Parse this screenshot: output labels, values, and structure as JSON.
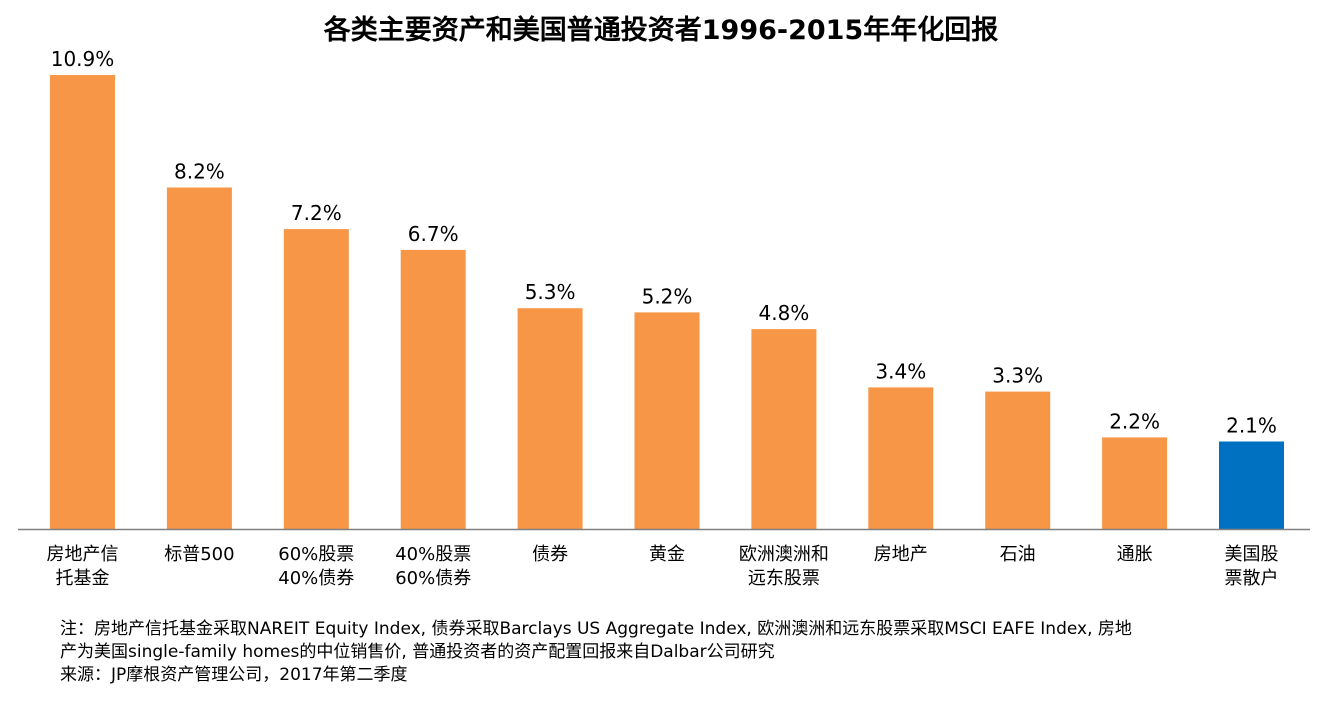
{
  "chart_data": {
    "type": "bar",
    "title": "各类主要资产和美国普通投资者1996-2015年年化回报",
    "categories": [
      [
        "房地产信",
        "托基金"
      ],
      [
        "标普500"
      ],
      [
        "60%股票",
        "40%债券"
      ],
      [
        "40%股票",
        "60%债券"
      ],
      [
        "债券"
      ],
      [
        "黄金"
      ],
      [
        "欧洲澳洲和",
        "远东股票"
      ],
      [
        "房地产"
      ],
      [
        "石油"
      ],
      [
        "通胀"
      ],
      [
        "美国股",
        "票散户"
      ]
    ],
    "values": [
      10.9,
      8.2,
      7.2,
      6.7,
      5.3,
      5.2,
      4.8,
      3.4,
      3.3,
      2.2,
      2.1
    ],
    "value_labels": [
      "10.9%",
      "8.2%",
      "7.2%",
      "6.7%",
      "5.3%",
      "5.2%",
      "4.8%",
      "3.4%",
      "3.3%",
      "2.2%",
      "2.1%"
    ],
    "bar_colors": [
      "#F79646",
      "#F79646",
      "#F79646",
      "#F79646",
      "#F79646",
      "#F79646",
      "#F79646",
      "#F79646",
      "#F79646",
      "#F79646",
      "#0070C0"
    ],
    "ylim": [
      0,
      10.9
    ],
    "grid": false,
    "legend": "none"
  },
  "notes": {
    "line1": "注：房地产信托基金采取NAREIT Equity Index, 债券采取Barclays US Aggregate Index, 欧洲澳洲和远东股票采取MSCI EAFE Index, 房地",
    "line2": "产为美国single-family homes的中位销售价, 普通投资者的资产配置回报来自Dalbar公司研究",
    "line3": "来源：JP摩根资产管理公司，2017年第二季度"
  },
  "colors": {
    "accent": "#F79646",
    "highlight": "#0070C0",
    "axis": "#808080"
  }
}
